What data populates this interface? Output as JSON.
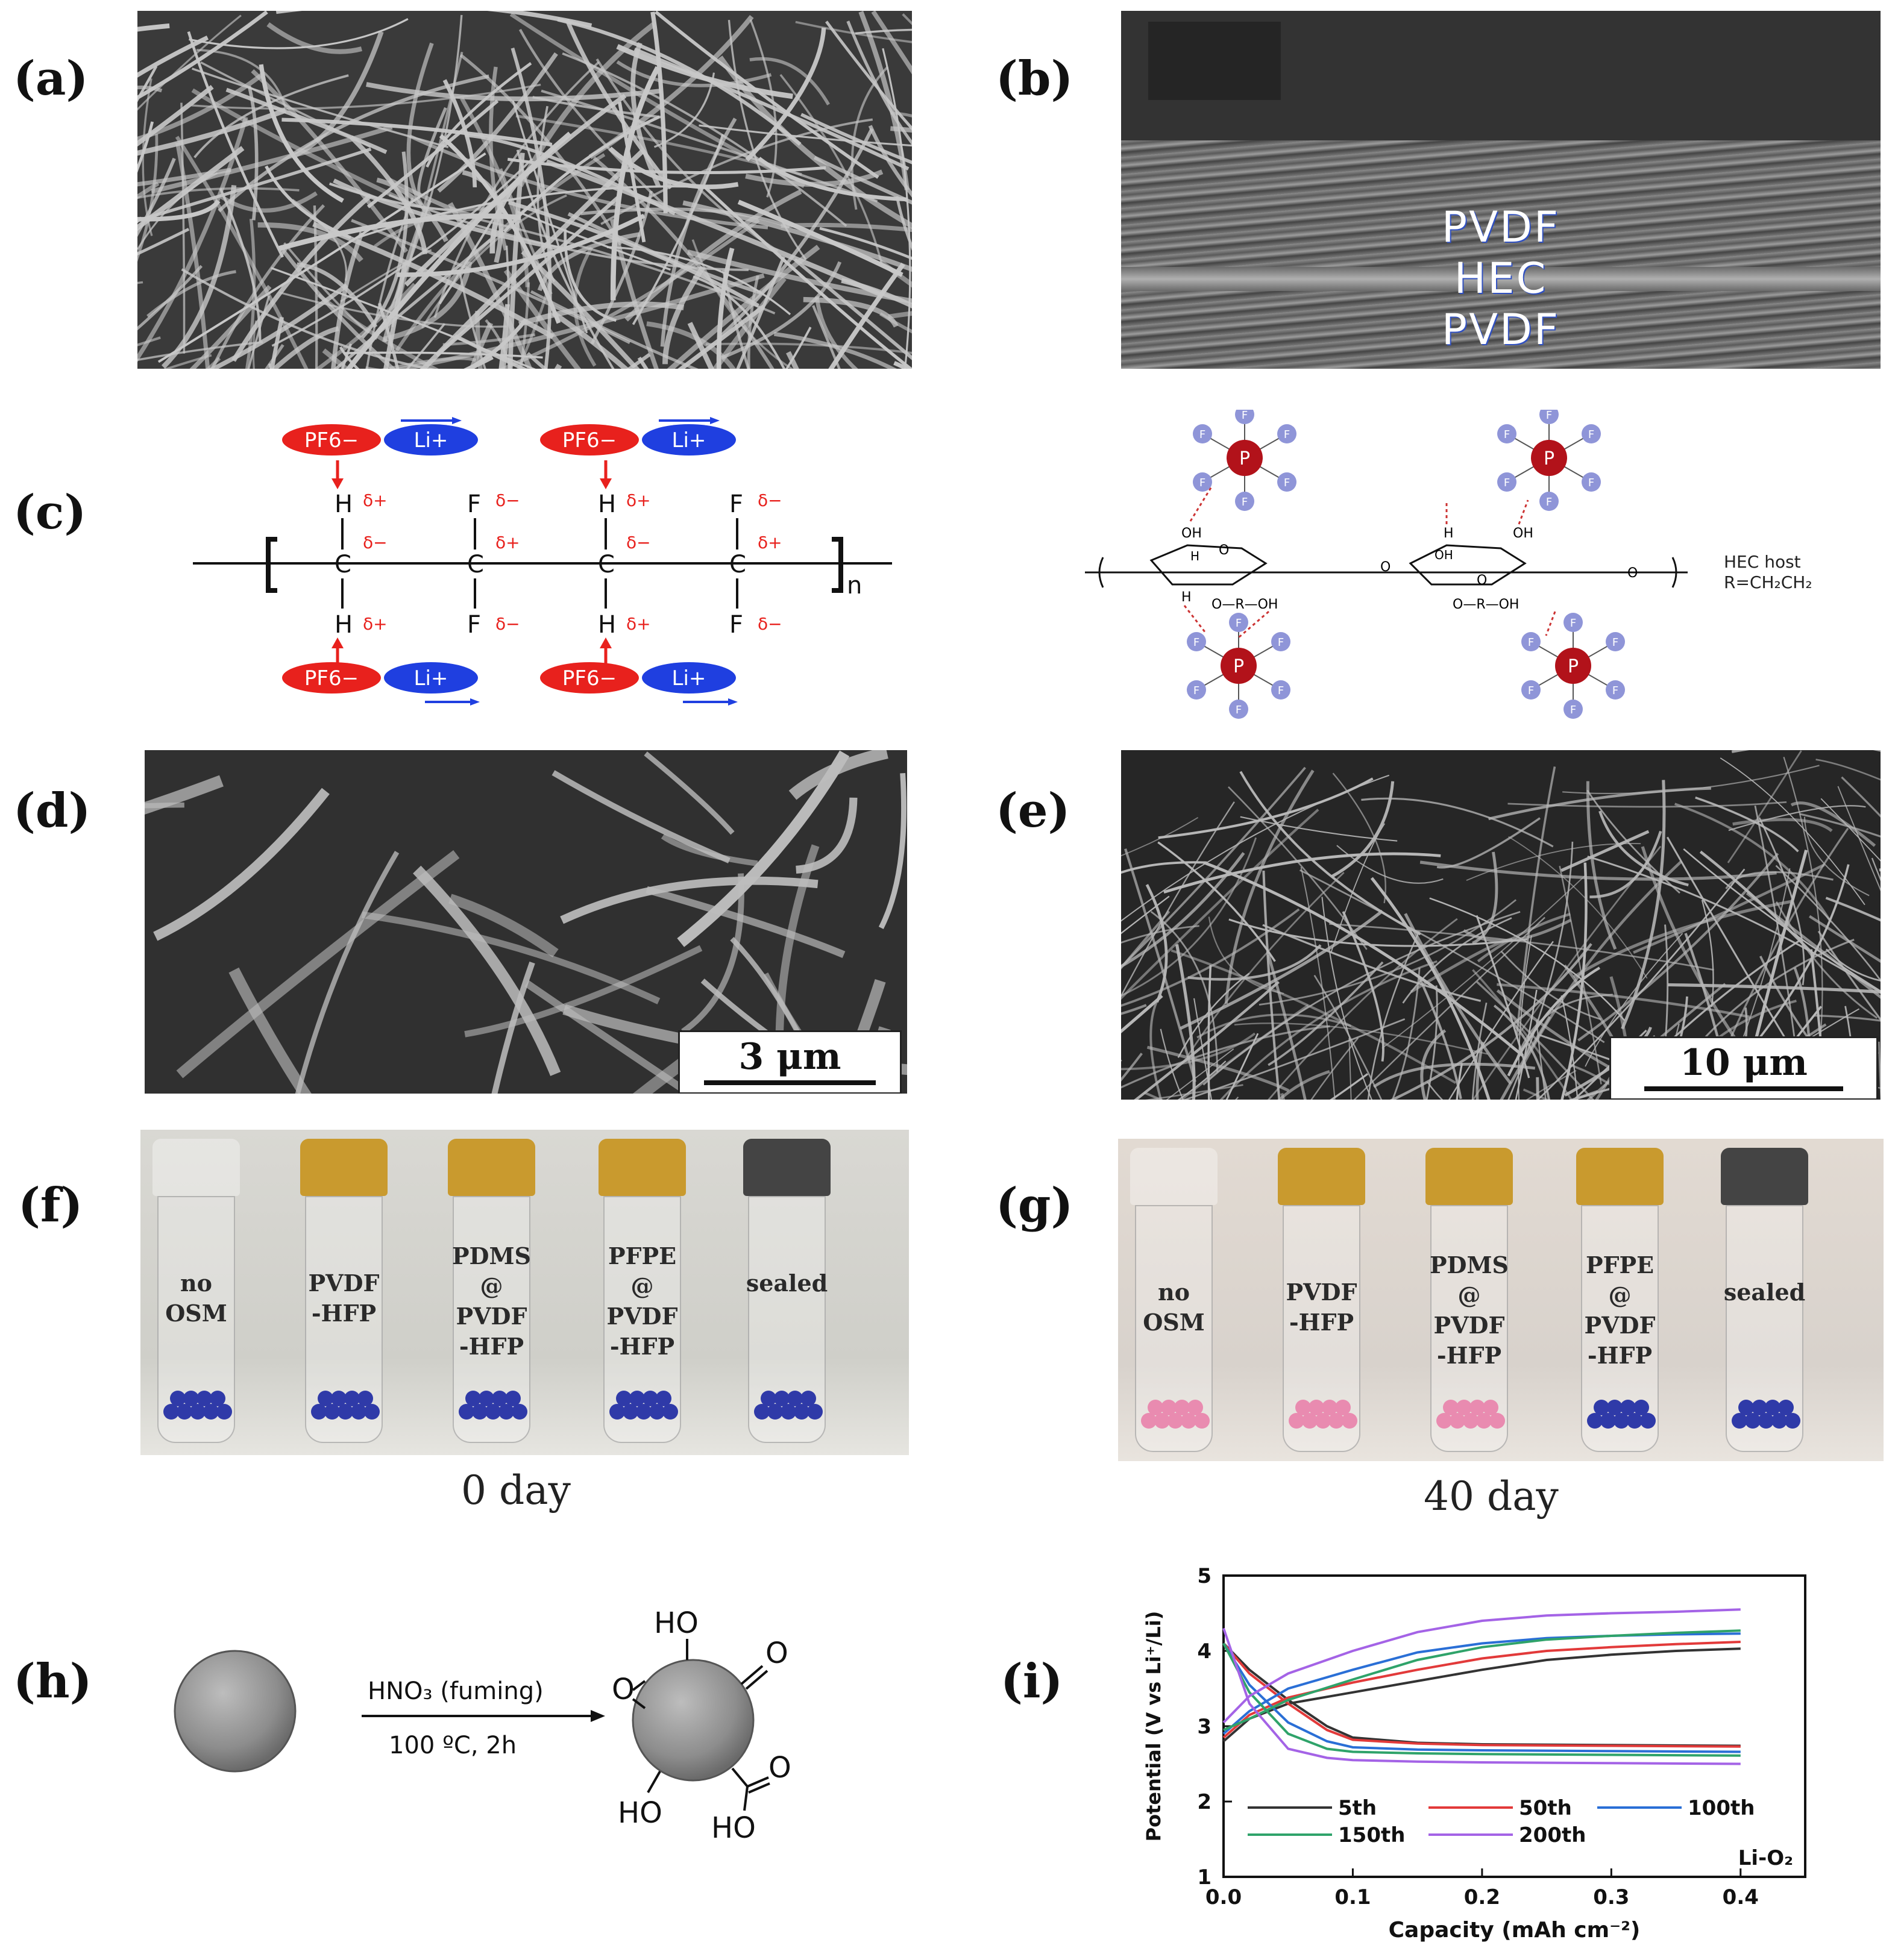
{
  "panels": {
    "a": {
      "label": "(a)"
    },
    "b": {
      "label": "(b)",
      "layers": [
        "PVDF",
        "HEC",
        "PVDF"
      ]
    },
    "c": {
      "label": "(c)",
      "left": {
        "ion_anion": "PF6−",
        "ion_cation": "Li+",
        "atom_h": "H",
        "atom_c": "C",
        "atom_f": "F",
        "delta_plus": "δ+",
        "delta_minus": "δ−",
        "subscript_n": "n"
      },
      "right": {
        "host_label": "HEC host",
        "r_label": "R=CH₂CH₂",
        "p_atom": "P",
        "f_atom": "F",
        "oh": "OH",
        "o": "O",
        "h": "H",
        "orohl": "O—R—OH"
      }
    },
    "d": {
      "label": "(d)",
      "scale": "3 μm"
    },
    "e": {
      "label": "(e)",
      "scale": "10 μm"
    },
    "f": {
      "label": "(f)",
      "caption": "0 day",
      "vials": [
        {
          "l1": "no",
          "l2": "OSM",
          "l3": ""
        },
        {
          "l1": "PVDF",
          "l2": "-HFP",
          "l3": ""
        },
        {
          "l1": "PDMS",
          "l2": "@",
          "l3": "PVDF",
          "l4": "-HFP"
        },
        {
          "l1": "PFPE",
          "l2": "@",
          "l3": "PVDF",
          "l4": "-HFP"
        },
        {
          "l1": "sealed",
          "l2": "",
          "l3": ""
        }
      ]
    },
    "g": {
      "label": "(g)",
      "caption": "40 day"
    },
    "h": {
      "label": "(h)",
      "reagent": "HNO₃ (fuming)",
      "conditions": "100 ºC, 2h",
      "groups": {
        "ho_top": "HO",
        "o_right": "O",
        "o_left": "O",
        "ho_bottom": "HO",
        "o_cooh": "O",
        "ho_cooh": "HO"
      }
    },
    "i": {
      "label": "(i)"
    }
  },
  "colors": {
    "anion": "#e8211d",
    "cation": "#1f3fe0",
    "p_atom": "#b2121a",
    "f_atom": "#8f95d8",
    "desiccant_blue": "#2f3aa8",
    "desiccant_pink": "#e98bb0",
    "cap_yellow": "#c99a2e"
  },
  "chart_data": {
    "type": "line",
    "title": "",
    "xlabel": "Capacity (mAh cm⁻²)",
    "ylabel": "Potential (V vs Li⁺/Li)",
    "xlim": [
      0.0,
      0.45
    ],
    "ylim": [
      1,
      5
    ],
    "xticks": [
      0.0,
      0.1,
      0.2,
      0.3,
      0.4
    ],
    "yticks": [
      1,
      2,
      3,
      4,
      5
    ],
    "annotation": "Li-O₂",
    "legend_placement": "bottom",
    "series": [
      {
        "name": "5th",
        "color": "#333333",
        "charge": [
          [
            0,
            2.8
          ],
          [
            0.02,
            3.1
          ],
          [
            0.05,
            3.3
          ],
          [
            0.1,
            3.45
          ],
          [
            0.15,
            3.6
          ],
          [
            0.2,
            3.75
          ],
          [
            0.25,
            3.88
          ],
          [
            0.3,
            3.95
          ],
          [
            0.35,
            4.0
          ],
          [
            0.4,
            4.03
          ]
        ],
        "discharge": [
          [
            0,
            4.1
          ],
          [
            0.02,
            3.75
          ],
          [
            0.05,
            3.35
          ],
          [
            0.08,
            3.0
          ],
          [
            0.1,
            2.85
          ],
          [
            0.15,
            2.78
          ],
          [
            0.2,
            2.76
          ],
          [
            0.3,
            2.75
          ],
          [
            0.4,
            2.74
          ]
        ]
      },
      {
        "name": "50th",
        "color": "#e23a3a",
        "charge": [
          [
            0,
            2.85
          ],
          [
            0.02,
            3.15
          ],
          [
            0.05,
            3.38
          ],
          [
            0.1,
            3.58
          ],
          [
            0.15,
            3.75
          ],
          [
            0.2,
            3.9
          ],
          [
            0.25,
            4.0
          ],
          [
            0.3,
            4.05
          ],
          [
            0.35,
            4.09
          ],
          [
            0.4,
            4.12
          ]
        ],
        "discharge": [
          [
            0,
            4.1
          ],
          [
            0.02,
            3.7
          ],
          [
            0.05,
            3.3
          ],
          [
            0.08,
            2.95
          ],
          [
            0.1,
            2.82
          ],
          [
            0.15,
            2.77
          ],
          [
            0.2,
            2.75
          ],
          [
            0.3,
            2.74
          ],
          [
            0.4,
            2.73
          ]
        ]
      },
      {
        "name": "100th",
        "color": "#2a6fd6",
        "charge": [
          [
            0,
            2.9
          ],
          [
            0.02,
            3.2
          ],
          [
            0.05,
            3.5
          ],
          [
            0.1,
            3.75
          ],
          [
            0.15,
            3.98
          ],
          [
            0.2,
            4.1
          ],
          [
            0.25,
            4.17
          ],
          [
            0.3,
            4.2
          ],
          [
            0.35,
            4.22
          ],
          [
            0.4,
            4.23
          ]
        ],
        "discharge": [
          [
            0,
            4.1
          ],
          [
            0.02,
            3.55
          ],
          [
            0.05,
            3.05
          ],
          [
            0.08,
            2.8
          ],
          [
            0.1,
            2.72
          ],
          [
            0.15,
            2.69
          ],
          [
            0.2,
            2.68
          ],
          [
            0.3,
            2.67
          ],
          [
            0.4,
            2.66
          ]
        ]
      },
      {
        "name": "150th",
        "color": "#2fa36a",
        "charge": [
          [
            0,
            2.95
          ],
          [
            0.02,
            3.1
          ],
          [
            0.05,
            3.35
          ],
          [
            0.1,
            3.62
          ],
          [
            0.15,
            3.88
          ],
          [
            0.2,
            4.05
          ],
          [
            0.25,
            4.15
          ],
          [
            0.3,
            4.2
          ],
          [
            0.35,
            4.24
          ],
          [
            0.4,
            4.27
          ]
        ],
        "discharge": [
          [
            0,
            4.1
          ],
          [
            0.02,
            3.45
          ],
          [
            0.05,
            2.9
          ],
          [
            0.08,
            2.7
          ],
          [
            0.1,
            2.66
          ],
          [
            0.15,
            2.64
          ],
          [
            0.2,
            2.63
          ],
          [
            0.3,
            2.62
          ],
          [
            0.4,
            2.61
          ]
        ]
      },
      {
        "name": "200th",
        "color": "#a463e6",
        "charge": [
          [
            0,
            3.05
          ],
          [
            0.02,
            3.4
          ],
          [
            0.05,
            3.7
          ],
          [
            0.1,
            4.0
          ],
          [
            0.15,
            4.25
          ],
          [
            0.2,
            4.4
          ],
          [
            0.25,
            4.47
          ],
          [
            0.3,
            4.5
          ],
          [
            0.35,
            4.52
          ],
          [
            0.4,
            4.55
          ]
        ],
        "discharge": [
          [
            0,
            4.3
          ],
          [
            0.02,
            3.3
          ],
          [
            0.05,
            2.7
          ],
          [
            0.08,
            2.58
          ],
          [
            0.1,
            2.55
          ],
          [
            0.15,
            2.53
          ],
          [
            0.2,
            2.52
          ],
          [
            0.3,
            2.51
          ],
          [
            0.4,
            2.5
          ]
        ]
      }
    ]
  }
}
